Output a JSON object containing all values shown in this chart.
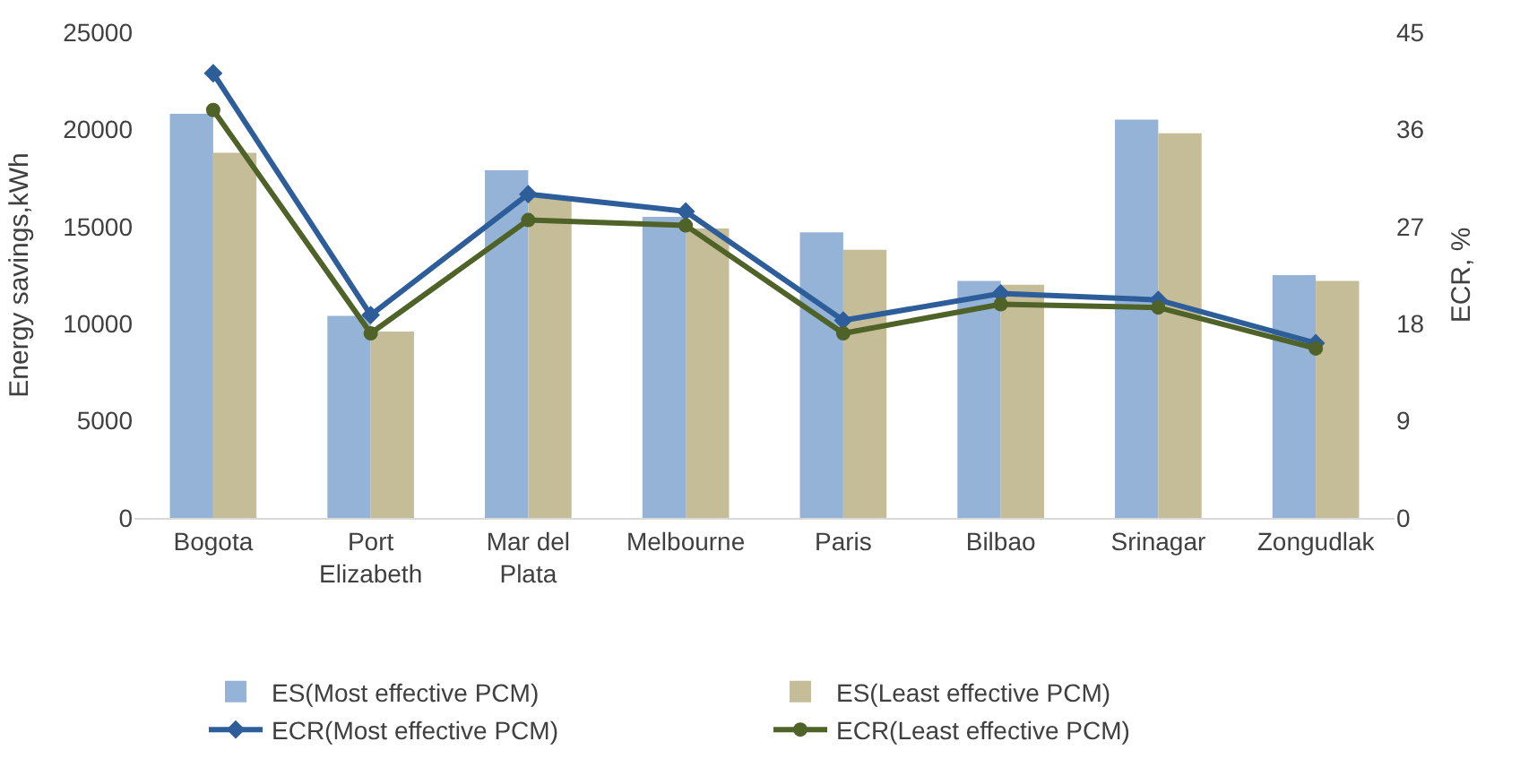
{
  "chart_data": {
    "type": "bar",
    "ylabel": "Energy savings,kWh",
    "y2label": "ECR, %",
    "categories": [
      "Bogota",
      "Port Elizabeth",
      "Mar del Plata",
      "Melbourne",
      "Paris",
      "Bilbao",
      "Srinagar",
      "Zongudlak"
    ],
    "series": [
      {
        "name": "ES(Most effective PCM)",
        "color": "#95b3d7",
        "values": [
          20800,
          10400,
          17900,
          15500,
          14700,
          12200,
          20500,
          12500
        ]
      },
      {
        "name": "ES(Least effective PCM)",
        "color": "#c4bd97",
        "values": [
          18800,
          9600,
          16500,
          14900,
          13800,
          12000,
          19800,
          12200
        ]
      },
      {
        "name": "ECR(Most effective PCM)",
        "type": "line",
        "axis": "y2",
        "marker": "diamond",
        "color": "#2e5e9a",
        "values": [
          41.2,
          18.8,
          30.0,
          28.4,
          18.3,
          20.8,
          20.2,
          16.2
        ]
      },
      {
        "name": "ECR(Least effective PCM)",
        "type": "line",
        "axis": "y2",
        "marker": "circle",
        "color": "#4f6228",
        "values": [
          37.8,
          17.1,
          27.6,
          27.1,
          17.1,
          19.8,
          19.5,
          15.7
        ]
      }
    ],
    "ylim": [
      0,
      25000
    ],
    "yticks": [
      0,
      5000,
      10000,
      15000,
      20000,
      25000
    ],
    "y2lim": [
      0,
      45
    ],
    "y2ticks": [
      0,
      9,
      18,
      27,
      36,
      45
    ],
    "legend": "bottom",
    "line_style": "solid"
  }
}
